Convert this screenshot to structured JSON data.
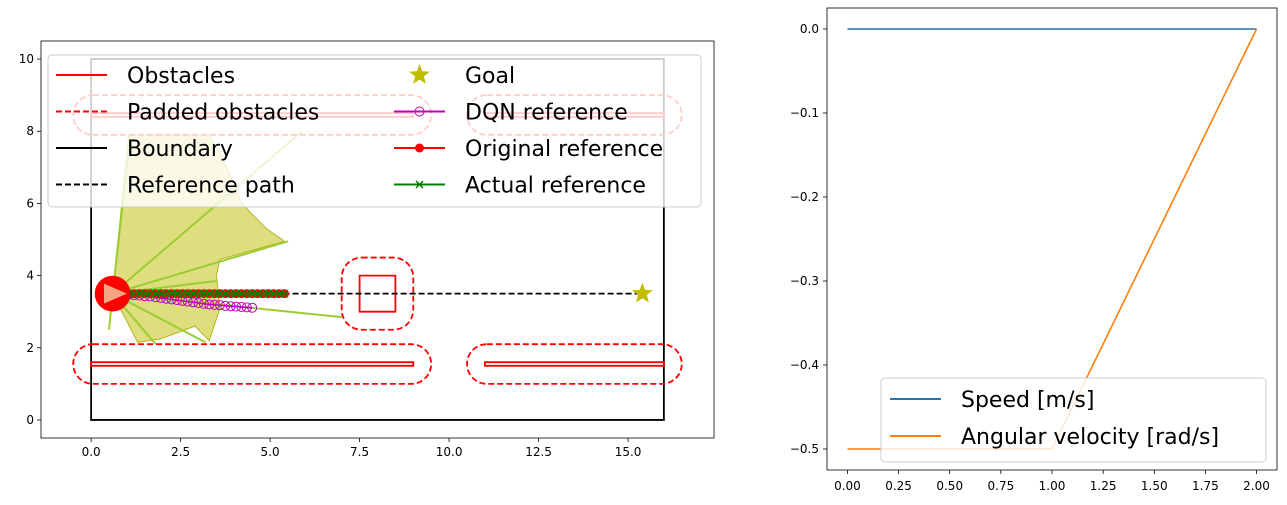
{
  "chart_data": [
    {
      "type": "scatter",
      "title": "",
      "xlabel": "",
      "ylabel": "",
      "xlim": [
        -1.4,
        17.4
      ],
      "ylim": [
        -0.5,
        10.5
      ],
      "x_ticks": [
        0.0,
        2.5,
        5.0,
        7.5,
        10.0,
        12.5,
        15.0
      ],
      "x_tick_labels": [
        "0.0",
        "2.5",
        "5.0",
        "7.5",
        "10.0",
        "12.5",
        "15.0"
      ],
      "y_ticks": [
        0,
        2,
        4,
        6,
        8,
        10
      ],
      "y_tick_labels": [
        "0",
        "2",
        "4",
        "6",
        "8",
        "10"
      ],
      "grid": false,
      "legend_position": "top",
      "legend": [
        {
          "label": "Obstacles",
          "style": "solid-line",
          "color": "#ff0000"
        },
        {
          "label": "Padded obstacles",
          "style": "dashed-line",
          "color": "#ff0000"
        },
        {
          "label": "Boundary",
          "style": "solid-line",
          "color": "#000000"
        },
        {
          "label": "Reference path",
          "style": "dashed-line",
          "color": "#000000"
        },
        {
          "label": "Goal",
          "style": "star",
          "color": "#bfbf00"
        },
        {
          "label": "DQN reference",
          "style": "line-open-circle",
          "color": "#bf00bf"
        },
        {
          "label": "Original reference",
          "style": "line-filled-circle",
          "color": "#ff0000"
        },
        {
          "label": "Actual reference",
          "style": "line-x",
          "color": "#008000"
        }
      ],
      "boundary": [
        [
          0,
          0
        ],
        [
          16,
          0
        ],
        [
          16,
          10
        ],
        [
          0,
          10
        ]
      ],
      "obstacles": [
        [
          [
            0,
            1.5
          ],
          [
            9,
            1.5
          ],
          [
            9,
            1.6
          ],
          [
            0,
            1.6
          ]
        ],
        [
          [
            11,
            1.5
          ],
          [
            16,
            1.5
          ],
          [
            16,
            1.6
          ],
          [
            11,
            1.6
          ]
        ],
        [
          [
            7.5,
            3
          ],
          [
            8.5,
            3
          ],
          [
            8.5,
            4
          ],
          [
            7.5,
            4
          ]
        ],
        [
          [
            0,
            8.4
          ],
          [
            9,
            8.4
          ],
          [
            9,
            8.5
          ],
          [
            0,
            8.5
          ]
        ],
        [
          [
            11,
            8.4
          ],
          [
            16,
            8.4
          ],
          [
            16,
            8.5
          ],
          [
            11,
            8.5
          ]
        ]
      ],
      "padded_obstacles": [
        {
          "x": [
            -0.5,
            9.5
          ],
          "y": [
            1.0,
            2.1
          ]
        },
        {
          "x": [
            10.5,
            16.5
          ],
          "y": [
            1.0,
            2.1
          ]
        },
        {
          "x": [
            7.0,
            9.0
          ],
          "y": [
            2.5,
            4.5
          ]
        },
        {
          "x": [
            -0.5,
            9.5
          ],
          "y": [
            7.9,
            9.0
          ]
        },
        {
          "x": [
            10.5,
            16.5
          ],
          "y": [
            7.9,
            9.0
          ]
        }
      ],
      "reference_path": {
        "x": [
          0.6,
          15.4
        ],
        "y": [
          3.5,
          3.5
        ]
      },
      "goal": {
        "x": 15.4,
        "y": 3.5
      },
      "robot": {
        "x": 0.6,
        "y": 3.5,
        "radius": 0.5,
        "heading_deg": 0
      },
      "dqn_reference": {
        "x": [
          0.6,
          0.75,
          0.9,
          1.05,
          1.2,
          1.35,
          1.5,
          1.65,
          1.8,
          1.95,
          2.1,
          2.25,
          2.4,
          2.55,
          2.7,
          2.85,
          3.0,
          3.15,
          3.3,
          3.45,
          3.6,
          3.75,
          3.9,
          4.05,
          4.2,
          4.35,
          4.5
        ],
        "y": [
          3.5,
          3.49,
          3.48,
          3.47,
          3.46,
          3.45,
          3.43,
          3.42,
          3.4,
          3.38,
          3.36,
          3.34,
          3.32,
          3.3,
          3.28,
          3.26,
          3.24,
          3.22,
          3.2,
          3.19,
          3.18,
          3.16,
          3.15,
          3.14,
          3.13,
          3.12,
          3.11
        ]
      },
      "original_reference": {
        "x": [
          1.05,
          1.2,
          1.35,
          1.5,
          1.65,
          1.8,
          1.95,
          2.1,
          2.25,
          2.4,
          2.55,
          2.7,
          2.85,
          3.0,
          3.15,
          3.3,
          3.45,
          3.6,
          3.75,
          3.9,
          4.05,
          4.2,
          4.35,
          4.5,
          4.65,
          4.8,
          4.95,
          5.1,
          5.25,
          5.4
        ],
        "y": [
          3.5,
          3.5,
          3.5,
          3.5,
          3.5,
          3.5,
          3.5,
          3.5,
          3.5,
          3.5,
          3.5,
          3.5,
          3.5,
          3.5,
          3.5,
          3.5,
          3.5,
          3.5,
          3.5,
          3.5,
          3.5,
          3.5,
          3.5,
          3.5,
          3.5,
          3.5,
          3.5,
          3.5,
          3.5,
          3.5
        ]
      },
      "actual_reference": {
        "x": [
          1.05,
          1.2,
          1.35,
          1.5,
          1.65,
          1.8,
          1.95,
          2.1,
          2.25,
          2.4,
          2.55,
          2.7,
          2.85,
          3.0,
          3.15,
          3.3,
          3.45,
          3.6,
          3.75,
          3.9,
          4.05,
          4.2,
          4.35,
          4.5,
          4.65,
          4.8,
          4.95,
          5.1,
          5.25,
          5.4
        ],
        "y": [
          3.5,
          3.5,
          3.5,
          3.5,
          3.5,
          3.5,
          3.5,
          3.5,
          3.5,
          3.5,
          3.5,
          3.5,
          3.5,
          3.5,
          3.5,
          3.5,
          3.5,
          3.5,
          3.5,
          3.5,
          3.5,
          3.5,
          3.5,
          3.5,
          3.5,
          3.5,
          3.5,
          3.5,
          3.5,
          3.5
        ]
      },
      "sensor_rays": [
        [
          [
            0.6,
            3.5
          ],
          [
            0.5,
            2.5
          ]
        ],
        [
          [
            0.6,
            3.5
          ],
          [
            1.8,
            2.1
          ]
        ],
        [
          [
            0.6,
            3.5
          ],
          [
            3.2,
            2.15
          ]
        ],
        [
          [
            0.6,
            3.5
          ],
          [
            7.0,
            2.85
          ]
        ],
        [
          [
            0.6,
            3.5
          ],
          [
            3.5,
            3.85
          ]
        ],
        [
          [
            0.6,
            3.5
          ],
          [
            5.5,
            4.95
          ]
        ],
        [
          [
            0.6,
            3.5
          ],
          [
            5.9,
            8.0
          ]
        ],
        [
          [
            0.6,
            3.5
          ],
          [
            1.1,
            7.9
          ]
        ]
      ],
      "sensor_sectors": [
        [
          [
            0.6,
            3.5
          ],
          [
            1.05,
            7.9
          ],
          [
            3.3,
            7.9
          ],
          [
            3.8,
            7.0
          ],
          [
            4.2,
            6.0
          ],
          [
            4.9,
            5.3
          ],
          [
            5.4,
            4.95
          ],
          [
            3.6,
            4.45
          ],
          [
            3.5,
            4.0
          ],
          [
            3.55,
            3.55
          ],
          [
            3.6,
            3.1
          ],
          [
            3.3,
            2.2
          ],
          [
            2.9,
            2.6
          ],
          [
            1.95,
            2.25
          ],
          [
            1.3,
            2.15
          ]
        ]
      ]
    },
    {
      "type": "line",
      "title": "",
      "xlabel": "",
      "ylabel": "",
      "xlim": [
        -0.1,
        2.1
      ],
      "ylim": [
        -0.525,
        0.025
      ],
      "x_ticks": [
        0.0,
        0.25,
        0.5,
        0.75,
        1.0,
        1.25,
        1.5,
        1.75,
        2.0
      ],
      "x_tick_labels": [
        "0.00",
        "0.25",
        "0.50",
        "0.75",
        "1.00",
        "1.25",
        "1.50",
        "1.75",
        "2.00"
      ],
      "y_ticks": [
        0.0,
        -0.1,
        -0.2,
        -0.3,
        -0.4,
        -0.5
      ],
      "y_tick_labels": [
        "0.0",
        "−0.1",
        "−0.2",
        "−0.3",
        "−0.4",
        "−0.5"
      ],
      "grid": false,
      "legend_position": "lower-right",
      "series": [
        {
          "name": "Speed [m/s]",
          "color": "#1f77b4",
          "x": [
            0,
            1,
            2
          ],
          "y": [
            0.0,
            0.0,
            0.0
          ]
        },
        {
          "name": "Angular velocity [rad/s]",
          "color": "#ff7f0e",
          "x": [
            0,
            1,
            2
          ],
          "y": [
            -0.5,
            -0.5,
            0.0
          ]
        }
      ]
    }
  ]
}
